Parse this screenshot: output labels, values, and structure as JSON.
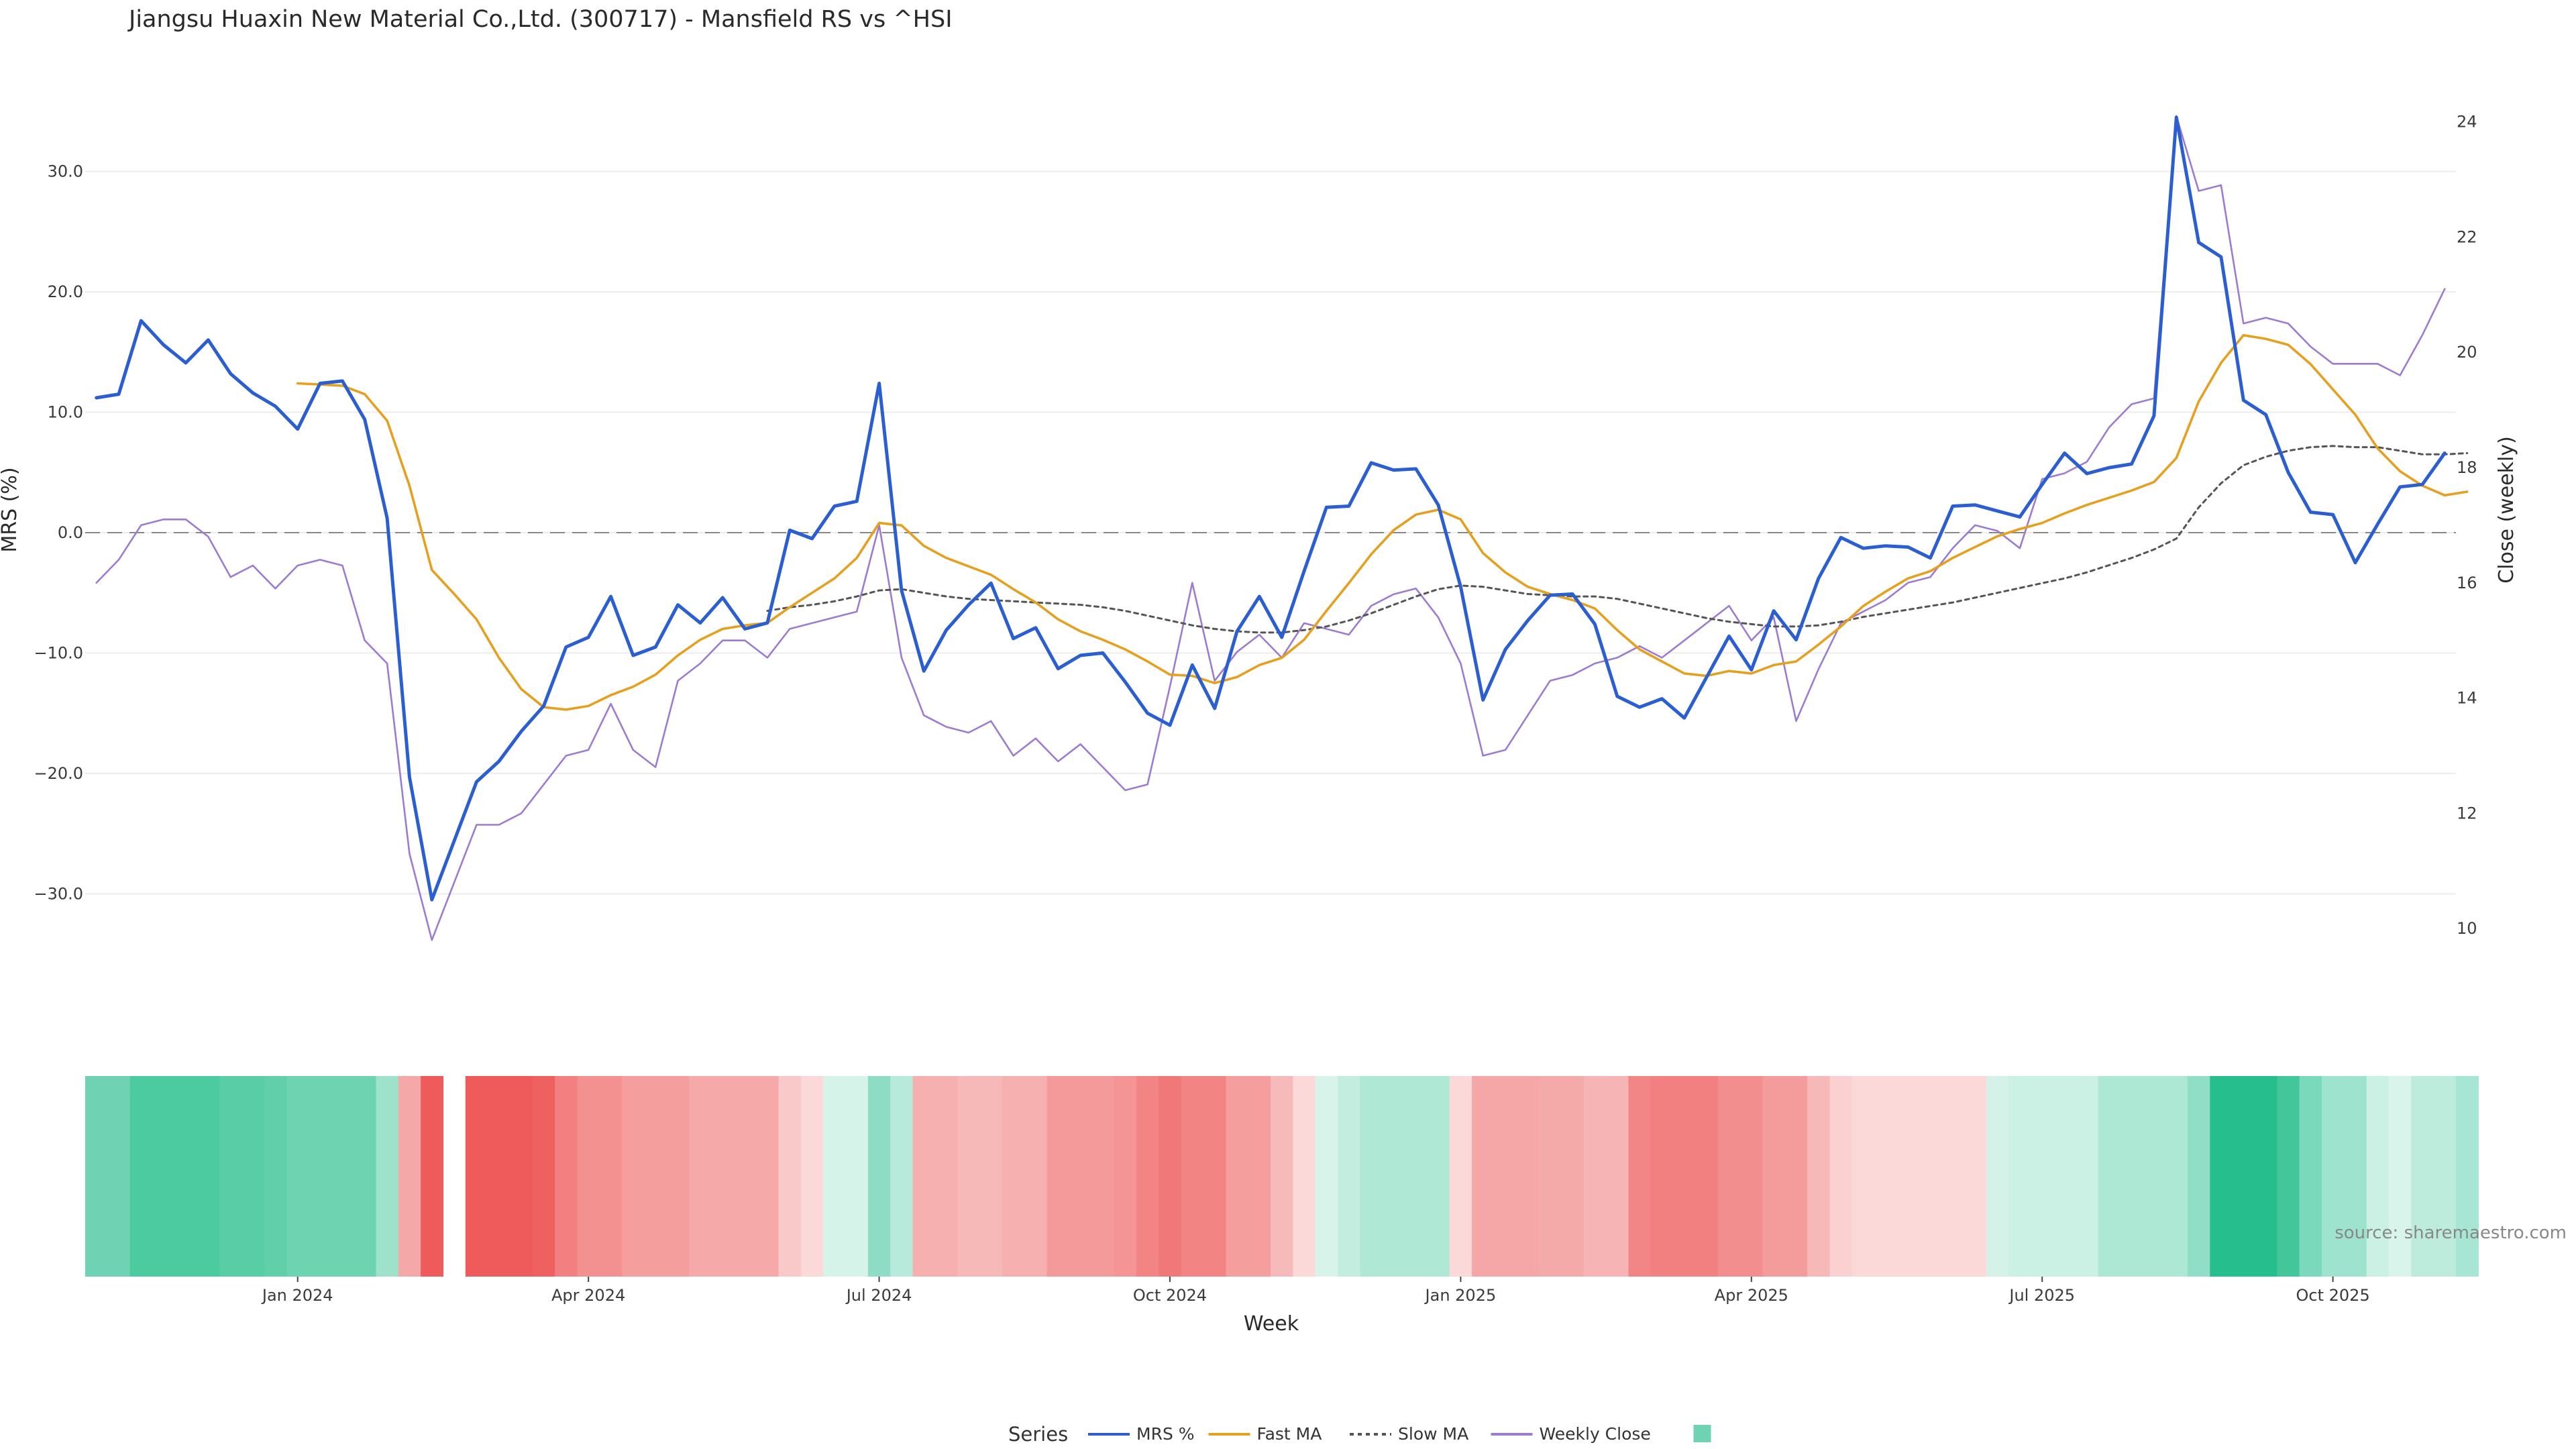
{
  "chart_data": {
    "type": "line",
    "title": "Jiangsu Huaxin New Material Co.,Ltd. (300717) - Mansfield RS vs ^HSI",
    "xlabel": "Week",
    "ylabel_left": "MRS (%)",
    "ylabel_right": "Close (weekly)",
    "source": "source: sharemaestro.com",
    "ylim_left": [
      -36,
      37
    ],
    "ylim_right": [
      9.35,
      24.6
    ],
    "yticks_left": [
      "30.0",
      "20.0",
      "10.0",
      "0.0",
      "−10.0",
      "−20.0",
      "−30.0"
    ],
    "yticks_left_values": [
      30,
      20,
      10,
      0,
      -10,
      -20,
      -30
    ],
    "yticks_right": [
      "24",
      "22",
      "20",
      "18",
      "16",
      "14",
      "12",
      "10"
    ],
    "yticks_right_values": [
      24,
      22,
      20,
      18,
      16,
      14,
      12,
      10
    ],
    "xticks": [
      "Jan 2024",
      "Apr 2024",
      "Jul 2024",
      "Oct 2024",
      "Jan 2025",
      "Apr 2025",
      "Jul 2025",
      "Oct 2025"
    ],
    "xticks_week_index": [
      9.5,
      22.5,
      35.5,
      48.5,
      61.5,
      74.5,
      87.5,
      100.5
    ],
    "week_count": 106,
    "zero_line": 0,
    "grid": true,
    "legend_position": "bottom-center",
    "legend_title": "Series",
    "series": [
      {
        "name": "MRS %",
        "axis": "left",
        "color": "#2b5fd1",
        "values": [
          11.2,
          11.5,
          17.6,
          15.6,
          14.1,
          16.0,
          13.2,
          11.6,
          10.5,
          8.6,
          12.4,
          12.6,
          9.4,
          1.2,
          -20.3,
          -30.5,
          -25.6,
          -20.7,
          -19.0,
          -16.5,
          -14.4,
          -9.5,
          -8.7,
          -5.3,
          -10.2,
          -9.5,
          -6.0,
          -7.5,
          -5.4,
          -8.0,
          -7.5,
          0.2,
          -0.5,
          2.2,
          2.6,
          12.4,
          -4.8,
          -11.5,
          -8.1,
          -6.0,
          -4.2,
          -8.8,
          -7.9,
          -11.3,
          -10.2,
          -10.0,
          -12.4,
          -15.0,
          -16.0,
          -11.0,
          -14.6,
          -8.2,
          -5.3,
          -8.7,
          -3.2,
          2.1,
          2.2,
          5.8,
          5.2,
          5.3,
          2.3,
          -4.5,
          -13.9,
          -9.7,
          -7.3,
          -5.2,
          -5.1,
          -7.6,
          -13.6,
          -14.5,
          -13.8,
          -15.4,
          -12.0,
          -8.6,
          -11.4,
          -6.5,
          -8.9,
          -3.8,
          -0.4,
          -1.3,
          -1.1,
          -1.2,
          -2.1,
          2.2,
          2.3,
          1.8,
          1.3,
          4.0,
          6.6,
          4.9,
          5.4,
          5.7,
          9.7,
          34.5,
          24.1,
          22.9,
          11.0,
          9.8,
          5.0,
          1.7,
          1.5,
          -2.5,
          0.7,
          3.8,
          4.0,
          6.6
        ]
      },
      {
        "name": "Fast MA",
        "axis": "left",
        "color": "#e5a020",
        "values": [
          null,
          null,
          null,
          null,
          null,
          null,
          null,
          null,
          null,
          12.4,
          12.3,
          12.2,
          11.5,
          9.3,
          3.9,
          -3.1,
          -5.1,
          -7.2,
          -10.4,
          -13.0,
          -14.5,
          -14.7,
          -14.4,
          -13.5,
          -12.8,
          -11.8,
          -10.2,
          -8.9,
          -8.0,
          -7.7,
          -7.5,
          -6.2,
          -5.0,
          -3.8,
          -2.1,
          0.8,
          0.6,
          -1.1,
          -2.1,
          -2.8,
          -3.5,
          -4.7,
          -5.8,
          -7.2,
          -8.2,
          -8.9,
          -9.7,
          -10.7,
          -11.8,
          -11.9,
          -12.5,
          -12.0,
          -11.0,
          -10.4,
          -8.9,
          -6.5,
          -4.2,
          -1.8,
          0.2,
          1.5,
          1.9,
          1.1,
          -1.7,
          -3.3,
          -4.5,
          -5.1,
          -5.6,
          -6.3,
          -8.1,
          -9.7,
          -10.7,
          -11.7,
          -11.9,
          -11.5,
          -11.7,
          -11.0,
          -10.7,
          -9.3,
          -7.8,
          -6.1,
          -4.9,
          -3.8,
          -3.2,
          -2.1,
          -1.2,
          -0.3,
          0.3,
          0.8,
          1.6,
          2.3,
          2.9,
          3.5,
          4.2,
          6.2,
          10.9,
          14.1,
          16.4,
          16.1,
          15.6,
          14.0,
          11.9,
          9.8,
          7.0,
          5.1,
          3.9,
          3.1,
          3.4
        ]
      },
      {
        "name": "Slow MA",
        "axis": "left",
        "color": "#555555",
        "dash": true,
        "values": [
          null,
          null,
          null,
          null,
          null,
          null,
          null,
          null,
          null,
          null,
          null,
          null,
          null,
          null,
          null,
          null,
          null,
          null,
          null,
          null,
          null,
          null,
          null,
          null,
          null,
          null,
          null,
          null,
          null,
          null,
          -6.5,
          -6.2,
          -6.0,
          -5.7,
          -5.3,
          -4.8,
          -4.7,
          -5.0,
          -5.3,
          -5.5,
          -5.6,
          -5.7,
          -5.8,
          -5.9,
          -6.0,
          -6.2,
          -6.5,
          -6.9,
          -7.3,
          -7.7,
          -8.0,
          -8.2,
          -8.3,
          -8.3,
          -8.1,
          -7.8,
          -7.3,
          -6.7,
          -6.0,
          -5.3,
          -4.7,
          -4.4,
          -4.5,
          -4.8,
          -5.1,
          -5.2,
          -5.3,
          -5.3,
          -5.5,
          -5.9,
          -6.3,
          -6.7,
          -7.1,
          -7.4,
          -7.6,
          -7.8,
          -7.8,
          -7.7,
          -7.4,
          -7.0,
          -6.7,
          -6.4,
          -6.1,
          -5.8,
          -5.4,
          -5.0,
          -4.6,
          -4.2,
          -3.8,
          -3.3,
          -2.7,
          -2.1,
          -1.4,
          -0.5,
          2.1,
          4.1,
          5.6,
          6.3,
          6.8,
          7.1,
          7.2,
          7.1,
          7.1,
          6.8,
          6.5,
          6.5,
          6.6
        ]
      },
      {
        "name": "Weekly Close",
        "axis": "right",
        "color": "#9c7cd0",
        "values": [
          16.0,
          16.4,
          17.0,
          17.1,
          17.1,
          16.8,
          16.1,
          16.3,
          15.9,
          16.3,
          16.4,
          16.3,
          15.0,
          14.6,
          11.3,
          9.8,
          10.8,
          11.8,
          11.8,
          12.0,
          12.5,
          13.0,
          13.1,
          13.9,
          13.1,
          12.8,
          14.3,
          14.6,
          15.0,
          15.0,
          14.7,
          15.2,
          15.3,
          15.4,
          15.5,
          17.0,
          14.7,
          13.7,
          13.5,
          13.4,
          13.6,
          13.0,
          13.3,
          12.9,
          13.2,
          12.8,
          12.4,
          12.5,
          14.2,
          16.0,
          14.3,
          14.8,
          15.1,
          14.7,
          15.3,
          15.2,
          15.1,
          15.6,
          15.8,
          15.9,
          15.4,
          14.6,
          13.0,
          13.1,
          13.7,
          14.3,
          14.4,
          14.6,
          14.7,
          14.9,
          14.7,
          15.0,
          15.3,
          15.6,
          15.0,
          15.4,
          13.6,
          14.5,
          15.3,
          15.5,
          15.7,
          16.0,
          16.1,
          16.6,
          17.0,
          16.9,
          16.6,
          17.8,
          17.9,
          18.1,
          18.7,
          19.1,
          19.2,
          24.1,
          22.8,
          22.9,
          20.5,
          20.6,
          20.5,
          20.1,
          19.8,
          19.8,
          19.8,
          19.6,
          20.3,
          21.1
        ]
      }
    ],
    "heat_strip": {
      "gap_index": 16,
      "colors": [
        "#6fd3b3",
        "#6fd3b3",
        "#4ccaa0",
        "#4ccaa0",
        "#4ccaa0",
        "#4ccaa0",
        "#59cda6",
        "#59cda6",
        "#61d0aa",
        "#6dd3b1",
        "#6dd3b1",
        "#6dd3b1",
        "#6dd3b1",
        "#9ee2cc",
        "#f5a8a8",
        "#ef5a5a",
        null,
        "#ef5a5a",
        "#ef5a5a",
        "#ef5a5a",
        "#ef6060",
        "#f28080",
        "#f39090",
        "#f39090",
        "#f59e9e",
        "#f59e9e",
        "#f59e9e",
        "#f6a9a9",
        "#f6a9a9",
        "#f6a9a9",
        "#f6a9a9",
        "#f9c9c9",
        "#fbd9d9",
        "#d6f3ea",
        "#d6f3ea",
        "#8fdcc4",
        "#b8eadb",
        "#f6b0b0",
        "#f6b0b0",
        "#f7b8b8",
        "#f7b8b8",
        "#f6b0b0",
        "#f6b0b0",
        "#f49a9a",
        "#f49a9a",
        "#f49a9a",
        "#f49494",
        "#f28484",
        "#f17878",
        "#f28484",
        "#f28484",
        "#f49e9e",
        "#f49e9e",
        "#f7baba",
        "#fbd9d9",
        "#d8f3ea",
        "#c3eedf",
        "#b0e8d6",
        "#b0e8d6",
        "#b0e8d6",
        "#b0e8d6",
        "#fbd9d9",
        "#f5a6a6",
        "#f5a6a6",
        "#f5a6a6",
        "#f5aaaa",
        "#f5aaaa",
        "#f7b4b4",
        "#f7b4b4",
        "#f28686",
        "#f28080",
        "#f28080",
        "#f28080",
        "#f38e8e",
        "#f38e8e",
        "#f49c9c",
        "#f49c9c",
        "#f7b8b8",
        "#fad0d0",
        "#fcd9d9",
        "#fcd9d9",
        "#fcd9d9",
        "#fcd9d9",
        "#fcd9d9",
        "#fcd9d9",
        "#d4f2e8",
        "#cbf0e4",
        "#cbf0e4",
        "#cbf0e4",
        "#cbf0e4",
        "#ade8d5",
        "#ade8d5",
        "#ade8d5",
        "#ade8d5",
        "#8fdec5",
        "#27be8e",
        "#27be8e",
        "#27be8e",
        "#43c69a",
        "#7ad9bb",
        "#9ee3cd",
        "#9ee3cd",
        "#cbf0e4",
        "#d8f4eb",
        "#bdecdd",
        "#bdecdd",
        "#a6e6d2"
      ]
    },
    "legend_items": [
      {
        "name": "MRS %",
        "color": "#2b5fd1",
        "style": "solid"
      },
      {
        "name": "Fast MA",
        "color": "#e5a020",
        "style": "solid"
      },
      {
        "name": "Slow MA",
        "color": "#555555",
        "style": "dotted"
      },
      {
        "name": "Weekly Close",
        "color": "#9c7cd0",
        "style": "solid"
      },
      {
        "name": "",
        "color": "#6fd3b3",
        "style": "swatch"
      }
    ]
  }
}
